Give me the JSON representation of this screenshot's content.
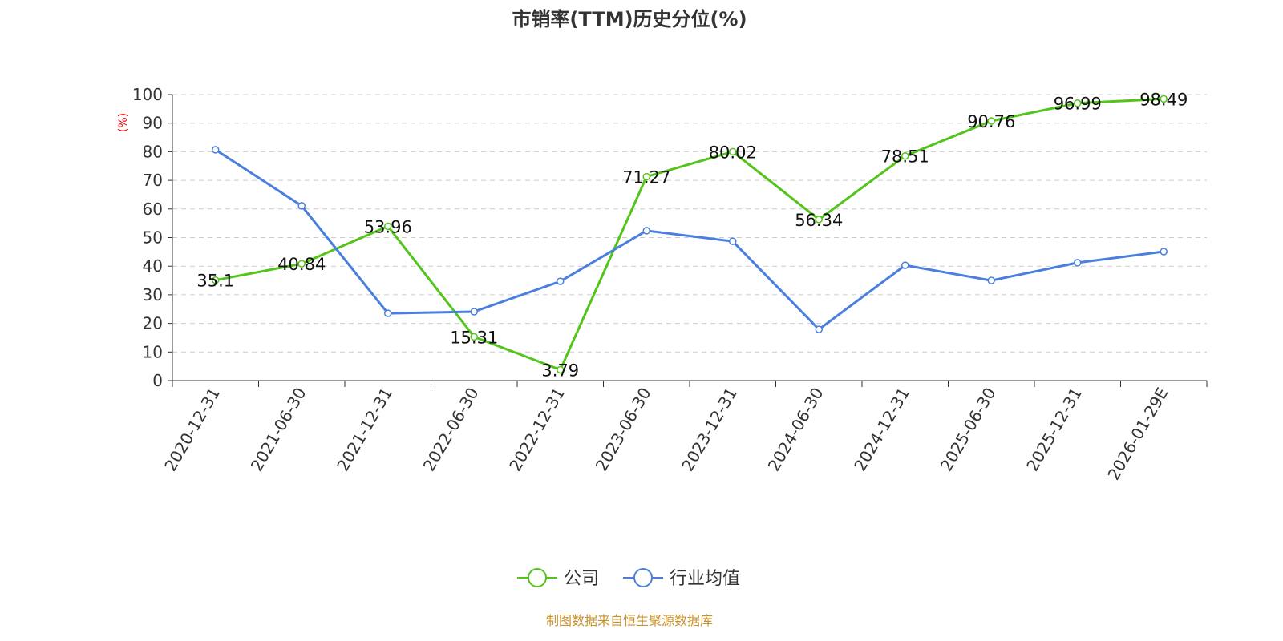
{
  "chart_data": {
    "type": "line",
    "title": "市销率(TTM)历史分位(%)",
    "ylabel": "(%)",
    "xlabel": "",
    "ylim": [
      0,
      100
    ],
    "yticks": [
      0,
      10,
      20,
      30,
      40,
      50,
      60,
      70,
      80,
      90,
      100
    ],
    "grid": true,
    "legend_position": "bottom",
    "categories": [
      "2020-12-31",
      "2021-06-30",
      "2021-12-31",
      "2022-06-30",
      "2022-12-31",
      "2023-06-30",
      "2023-12-31",
      "2024-06-30",
      "2024-12-31",
      "2025-06-30",
      "2025-12-31",
      "2026-01-29E"
    ],
    "series": [
      {
        "name": "公司",
        "color": "#52c41a",
        "show_labels": true,
        "values": [
          35.1,
          40.84,
          53.96,
          15.31,
          3.79,
          71.27,
          80.02,
          56.34,
          78.51,
          90.76,
          96.99,
          98.49
        ]
      },
      {
        "name": "行业均值",
        "color": "#4a7fe0",
        "show_labels": false,
        "values": [
          80.7,
          61.1,
          23.5,
          24.1,
          34.7,
          52.4,
          48.7,
          17.9,
          40.3,
          35.0,
          41.2,
          45.1
        ]
      }
    ],
    "source": "制图数据来自恒生聚源数据库"
  }
}
